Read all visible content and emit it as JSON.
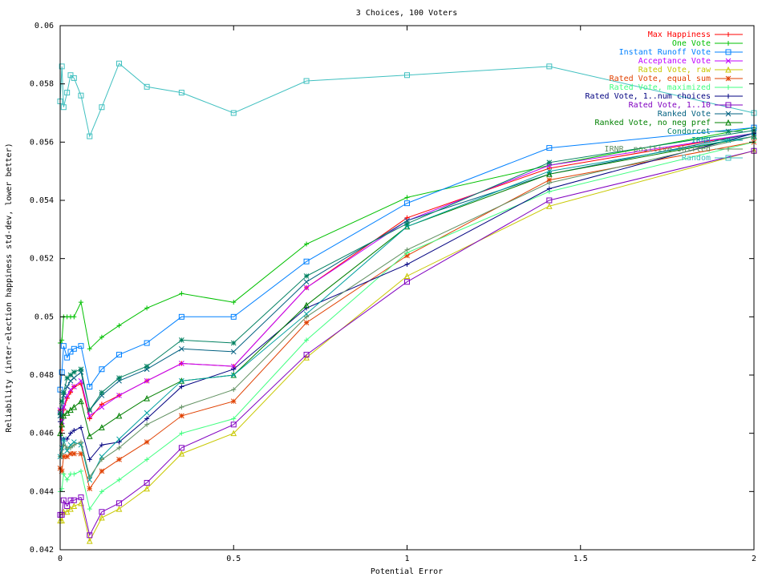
{
  "chart_data": {
    "type": "line",
    "title": "3 Choices, 100 Voters",
    "xlabel": "Potential Error",
    "ylabel": "Reliability (inter-election happiness std-dev, lower better)",
    "xlim": [
      0,
      2
    ],
    "ylim": [
      0.042,
      0.06
    ],
    "x_ticks": [
      0,
      0.5,
      1,
      1.5,
      2
    ],
    "x_tick_labels": [
      "0",
      "0.5",
      "1",
      "1.5",
      "2"
    ],
    "y_ticks": [
      0.042,
      0.044,
      0.046,
      0.048,
      0.05,
      0.052,
      0.054,
      0.056,
      0.058,
      0.06
    ],
    "y_tick_labels": [
      "0.042",
      "0.044",
      "0.046",
      "0.048",
      "0.05",
      "0.052",
      "0.054",
      "0.056",
      "0.058",
      "0.06"
    ],
    "grid": false,
    "legend_position": "top-right",
    "x": [
      0,
      0.005,
      0.01,
      0.02,
      0.03,
      0.04,
      0.06,
      0.085,
      0.12,
      0.17,
      0.25,
      0.35,
      0.5,
      0.71,
      1,
      1.41,
      2
    ],
    "series": [
      {
        "name": "Max Happiness",
        "color": "#ff0000",
        "marker": "plus",
        "values": [
          0.0468,
          0.0461,
          0.0468,
          0.0472,
          0.0474,
          0.0476,
          0.0477,
          0.0465,
          0.047,
          0.0473,
          0.0478,
          0.0484,
          0.0483,
          0.051,
          0.0534,
          0.0551,
          0.0563
        ]
      },
      {
        "name": "One Vote",
        "color": "#00c000",
        "marker": "plus",
        "values": [
          0.0491,
          0.0492,
          0.05,
          0.05,
          0.05,
          0.05,
          0.0505,
          0.0489,
          0.0493,
          0.0497,
          0.0503,
          0.0508,
          0.0505,
          0.0525,
          0.0541,
          0.0552,
          0.0565
        ]
      },
      {
        "name": "Instant Runoff Vote",
        "color": "#0080ff",
        "marker": "square",
        "values": [
          0.0475,
          0.0481,
          0.049,
          0.0486,
          0.0488,
          0.0489,
          0.049,
          0.0476,
          0.0482,
          0.0487,
          0.0491,
          0.05,
          0.05,
          0.0519,
          0.0539,
          0.0558,
          0.0565
        ]
      },
      {
        "name": "Acceptance Vote",
        "color": "#c000ff",
        "marker": "x",
        "values": [
          0.0468,
          0.0464,
          0.0469,
          0.0473,
          0.0475,
          0.0476,
          0.0478,
          0.0466,
          0.0469,
          0.0473,
          0.0478,
          0.0484,
          0.0483,
          0.051,
          0.0533,
          0.0552,
          0.0563
        ]
      },
      {
        "name": "Rated Vote, raw",
        "color": "#c8c800",
        "marker": "tri",
        "values": [
          0.043,
          0.043,
          0.0433,
          0.0433,
          0.0434,
          0.0435,
          0.0436,
          0.0423,
          0.0431,
          0.0434,
          0.0441,
          0.0453,
          0.046,
          0.0486,
          0.0514,
          0.0538,
          0.0557
        ]
      },
      {
        "name": "Rated Vote, equal sum",
        "color": "#e04000",
        "marker": "star",
        "values": [
          0.0448,
          0.0447,
          0.0452,
          0.0452,
          0.0453,
          0.0453,
          0.0453,
          0.0441,
          0.0447,
          0.0451,
          0.0457,
          0.0466,
          0.0471,
          0.0498,
          0.0521,
          0.0547,
          0.056
        ]
      },
      {
        "name": "Rated Vote, maximized",
        "color": "#40ff80",
        "marker": "plus",
        "values": [
          0.044,
          0.0441,
          0.0446,
          0.0444,
          0.0446,
          0.0446,
          0.0447,
          0.0434,
          0.044,
          0.0444,
          0.0451,
          0.046,
          0.0465,
          0.0492,
          0.0522,
          0.0543,
          0.056
        ]
      },
      {
        "name": "Rated Vote, 1..num choices",
        "color": "#000080",
        "marker": "plus",
        "values": [
          0.0464,
          0.0453,
          0.0458,
          0.0458,
          0.046,
          0.0461,
          0.0462,
          0.0451,
          0.0456,
          0.0457,
          0.0465,
          0.0476,
          0.0482,
          0.0503,
          0.0518,
          0.0544,
          0.0563
        ]
      },
      {
        "name": "Rated Vote, 1..10",
        "color": "#8000c0",
        "marker": "square",
        "values": [
          0.0432,
          0.0432,
          0.0437,
          0.0435,
          0.0437,
          0.0437,
          0.0438,
          0.0425,
          0.0433,
          0.0436,
          0.0443,
          0.0455,
          0.0463,
          0.0487,
          0.0512,
          0.054,
          0.0557
        ]
      },
      {
        "name": "Ranked Vote",
        "color": "#006080",
        "marker": "x",
        "values": [
          0.0466,
          0.0466,
          0.0473,
          0.0476,
          0.0478,
          0.0479,
          0.0481,
          0.0468,
          0.0473,
          0.0478,
          0.0482,
          0.0489,
          0.0488,
          0.0512,
          0.0533,
          0.0549,
          0.0563
        ]
      },
      {
        "name": "Ranked Vote, no neg pref",
        "color": "#008000",
        "marker": "tri",
        "values": [
          0.046,
          0.0463,
          0.0466,
          0.0467,
          0.0468,
          0.0469,
          0.0471,
          0.0459,
          0.0462,
          0.0466,
          0.0472,
          0.0478,
          0.048,
          0.0504,
          0.0531,
          0.0549,
          0.0562
        ]
      },
      {
        "name": "Condorcet",
        "color": "#008060",
        "marker": "star",
        "values": [
          0.0467,
          0.0471,
          0.0474,
          0.0479,
          0.048,
          0.0481,
          0.0482,
          0.0468,
          0.0474,
          0.0479,
          0.0483,
          0.0492,
          0.0491,
          0.0514,
          0.0532,
          0.0553,
          0.0564
        ]
      },
      {
        "name": "IRNR",
        "color": "#00a0a0",
        "marker": "x",
        "values": [
          0.0452,
          0.0455,
          0.0458,
          0.0454,
          0.0456,
          0.0457,
          0.0456,
          0.0444,
          0.0452,
          0.0458,
          0.0467,
          0.0478,
          0.048,
          0.0501,
          0.0531,
          0.055,
          0.0562
        ]
      },
      {
        "name": "IRNR, positive shifted",
        "color": "#609060",
        "marker": "plus",
        "values": [
          0.0452,
          0.0453,
          0.0456,
          0.0455,
          0.0455,
          0.0456,
          0.0457,
          0.0445,
          0.0451,
          0.0455,
          0.0463,
          0.0469,
          0.0475,
          0.05,
          0.0523,
          0.0546,
          0.0562
        ]
      },
      {
        "name": "Random",
        "color": "#40c0c0",
        "marker": "square",
        "values": [
          0.0574,
          0.0586,
          0.0572,
          0.0577,
          0.0583,
          0.0582,
          0.0576,
          0.0562,
          0.0572,
          0.0587,
          0.0579,
          0.0577,
          0.057,
          0.0581,
          0.0583,
          0.0586,
          0.057
        ]
      }
    ]
  }
}
